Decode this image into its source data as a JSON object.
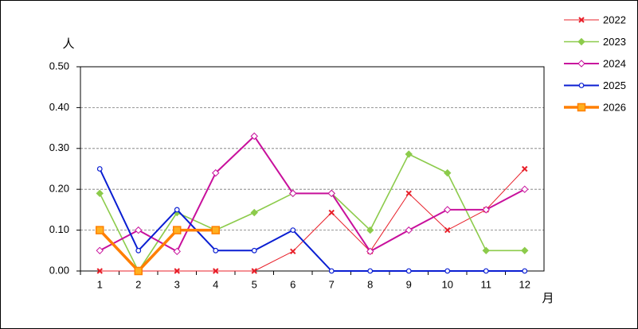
{
  "chart_data": {
    "type": "line",
    "y_unit": "人",
    "x_unit": "月",
    "categories": [
      "1",
      "2",
      "3",
      "4",
      "5",
      "6",
      "7",
      "8",
      "9",
      "10",
      "11",
      "12"
    ],
    "ylim": [
      0,
      0.5
    ],
    "yticks": [
      {
        "value": 0,
        "label": "0.00"
      },
      {
        "value": 0.1,
        "label": "0.10"
      },
      {
        "value": 0.2,
        "label": "0.20"
      },
      {
        "value": 0.3,
        "label": "0.30"
      },
      {
        "value": 0.4,
        "label": "0.40"
      },
      {
        "value": 0.5,
        "label": "0.50"
      }
    ],
    "grid": true,
    "legend": "right",
    "series": [
      {
        "name": "2022",
        "color": "#e8202a",
        "marker": "x",
        "linewidth": 1,
        "values": [
          0,
          0,
          0,
          0,
          0,
          0.048,
          0.143,
          0.048,
          0.19,
          0.1,
          0.15,
          0.25
        ]
      },
      {
        "name": "2023",
        "color": "#8ccb4b",
        "marker": "diamond",
        "linewidth": 1.6,
        "values": [
          0.19,
          0,
          0.143,
          0.1,
          0.143,
          0.19,
          0.19,
          0.1,
          0.286,
          0.24,
          0.05,
          0.05
        ]
      },
      {
        "name": "2024",
        "color": "#c8109c",
        "marker": "diamond-open",
        "linewidth": 2,
        "values": [
          0.05,
          0.1,
          0.048,
          0.24,
          0.33,
          0.19,
          0.19,
          0.048,
          0.1,
          0.15,
          0.15,
          0.2
        ]
      },
      {
        "name": "2025",
        "color": "#0a1ed2",
        "marker": "circle-open",
        "linewidth": 2,
        "values": [
          0.25,
          0.05,
          0.15,
          0.05,
          0.05,
          0.1,
          0,
          0,
          0,
          0,
          0,
          0
        ]
      },
      {
        "name": "2026",
        "color": "#ff7f00",
        "marker": "square",
        "linewidth": 3.5,
        "values": [
          0.1,
          0,
          0.1,
          0.1,
          null,
          null,
          null,
          null,
          null,
          null,
          null,
          null
        ]
      }
    ]
  }
}
